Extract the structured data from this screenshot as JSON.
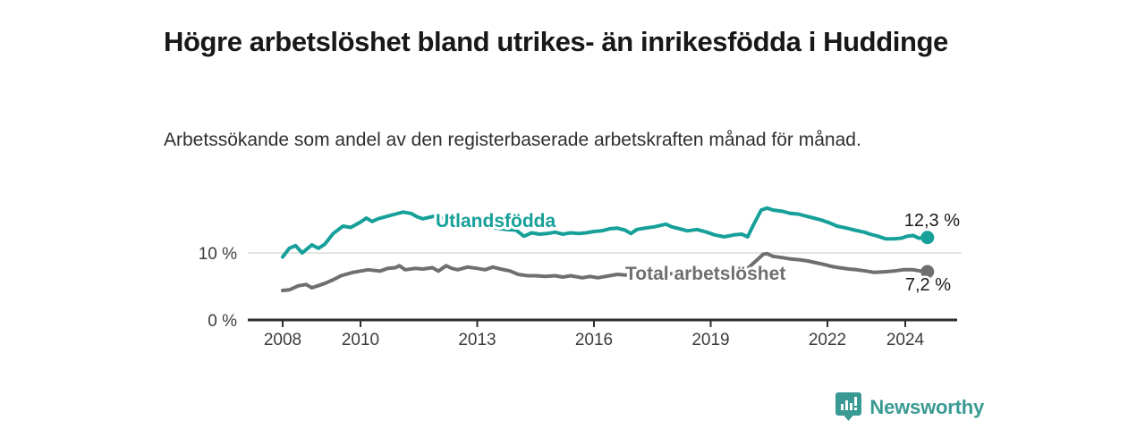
{
  "header": {
    "title": "Högre arbetslöshet bland utrikes- än inrikesfödda i Huddinge",
    "subtitle": "Arbetssökande som andel av den registerbaserade arbetskraften månad för månad."
  },
  "branding": {
    "logo_text": "Newsworthy",
    "logo_icon": "bar-chart-speech-bubble-icon",
    "logo_color": "#3a9a93"
  },
  "chart_data": {
    "type": "line",
    "title": "Högre arbetslöshet bland utrikes- än inrikesfödda i Huddinge",
    "subtitle": "Arbetssökande som andel av den registerbaserade arbetskraften månad för månad.",
    "xlabel": "",
    "ylabel": "",
    "grid": "horizontal-gridline-at-10-only",
    "legend": "inline-line-labels",
    "x_axis": {
      "ticks": [
        2008,
        2010,
        2013,
        2016,
        2019,
        2022,
        2024
      ],
      "range": [
        2008,
        2025.2
      ]
    },
    "y_axis": {
      "unit": "%",
      "ticks": [
        {
          "value": 0,
          "label": "0 %"
        },
        {
          "value": 10,
          "label": "10 %"
        }
      ],
      "range": [
        0,
        18
      ]
    },
    "series": [
      {
        "name": "Utlandsfödda",
        "color": "#16a099",
        "end_value": 12.3,
        "end_label": "12,3 %",
        "points": [
          [
            2008.0,
            9.4
          ],
          [
            2008.17,
            10.7
          ],
          [
            2008.33,
            11.1
          ],
          [
            2008.5,
            10.0
          ],
          [
            2008.75,
            11.2
          ],
          [
            2008.92,
            10.7
          ],
          [
            2009.08,
            11.3
          ],
          [
            2009.3,
            12.9
          ],
          [
            2009.55,
            14.0
          ],
          [
            2009.75,
            13.8
          ],
          [
            2010.0,
            14.6
          ],
          [
            2010.15,
            15.2
          ],
          [
            2010.3,
            14.7
          ],
          [
            2010.45,
            15.1
          ],
          [
            2010.7,
            15.5
          ],
          [
            2010.9,
            15.8
          ],
          [
            2011.1,
            16.1
          ],
          [
            2011.3,
            15.9
          ],
          [
            2011.45,
            15.4
          ],
          [
            2011.6,
            15.1
          ],
          [
            2011.75,
            15.3
          ],
          [
            2011.9,
            15.5
          ],
          [
            2012.1,
            15.2
          ],
          [
            2012.3,
            14.9
          ],
          [
            2012.5,
            14.7
          ],
          [
            2012.75,
            14.4
          ],
          [
            2013.0,
            14.2
          ],
          [
            2013.25,
            13.9
          ],
          [
            2013.5,
            13.7
          ],
          [
            2013.75,
            13.5
          ],
          [
            2014.0,
            13.4
          ],
          [
            2014.2,
            12.5
          ],
          [
            2014.4,
            13.0
          ],
          [
            2014.6,
            12.8
          ],
          [
            2014.8,
            12.9
          ],
          [
            2015.0,
            13.1
          ],
          [
            2015.2,
            12.8
          ],
          [
            2015.4,
            13.0
          ],
          [
            2015.6,
            12.9
          ],
          [
            2015.8,
            13.0
          ],
          [
            2016.0,
            13.2
          ],
          [
            2016.2,
            13.3
          ],
          [
            2016.4,
            13.6
          ],
          [
            2016.6,
            13.7
          ],
          [
            2016.8,
            13.4
          ],
          [
            2016.95,
            12.9
          ],
          [
            2017.1,
            13.5
          ],
          [
            2017.3,
            13.7
          ],
          [
            2017.55,
            13.9
          ],
          [
            2017.85,
            14.3
          ],
          [
            2018.0,
            13.9
          ],
          [
            2018.2,
            13.6
          ],
          [
            2018.4,
            13.3
          ],
          [
            2018.65,
            13.5
          ],
          [
            2018.9,
            13.1
          ],
          [
            2019.1,
            12.7
          ],
          [
            2019.35,
            12.4
          ],
          [
            2019.6,
            12.7
          ],
          [
            2019.8,
            12.8
          ],
          [
            2019.95,
            12.4
          ],
          [
            2020.1,
            14.2
          ],
          [
            2020.3,
            16.4
          ],
          [
            2020.45,
            16.7
          ],
          [
            2020.6,
            16.4
          ],
          [
            2020.85,
            16.2
          ],
          [
            2021.05,
            15.9
          ],
          [
            2021.25,
            15.8
          ],
          [
            2021.45,
            15.5
          ],
          [
            2021.65,
            15.2
          ],
          [
            2021.85,
            14.9
          ],
          [
            2022.05,
            14.5
          ],
          [
            2022.25,
            14.0
          ],
          [
            2022.5,
            13.7
          ],
          [
            2022.7,
            13.4
          ],
          [
            2022.95,
            13.1
          ],
          [
            2023.1,
            12.8
          ],
          [
            2023.3,
            12.5
          ],
          [
            2023.5,
            12.1
          ],
          [
            2023.7,
            12.1
          ],
          [
            2023.9,
            12.2
          ],
          [
            2024.05,
            12.5
          ],
          [
            2024.2,
            12.6
          ],
          [
            2024.35,
            12.2
          ],
          [
            2024.57,
            12.3
          ]
        ]
      },
      {
        "name": "Total arbetslöshet",
        "color": "#6f6f6f",
        "end_value": 7.2,
        "end_label": "7,2 %",
        "points": [
          [
            2008.0,
            4.4
          ],
          [
            2008.17,
            4.5
          ],
          [
            2008.4,
            5.1
          ],
          [
            2008.6,
            5.3
          ],
          [
            2008.75,
            4.8
          ],
          [
            2008.9,
            5.1
          ],
          [
            2009.1,
            5.5
          ],
          [
            2009.3,
            6.0
          ],
          [
            2009.5,
            6.6
          ],
          [
            2009.8,
            7.1
          ],
          [
            2010.0,
            7.3
          ],
          [
            2010.2,
            7.5
          ],
          [
            2010.5,
            7.3
          ],
          [
            2010.7,
            7.7
          ],
          [
            2010.9,
            7.8
          ],
          [
            2011.0,
            8.1
          ],
          [
            2011.15,
            7.5
          ],
          [
            2011.4,
            7.7
          ],
          [
            2011.6,
            7.6
          ],
          [
            2011.85,
            7.8
          ],
          [
            2012.0,
            7.3
          ],
          [
            2012.2,
            8.1
          ],
          [
            2012.35,
            7.7
          ],
          [
            2012.5,
            7.5
          ],
          [
            2012.75,
            7.9
          ],
          [
            2013.0,
            7.7
          ],
          [
            2013.2,
            7.5
          ],
          [
            2013.4,
            7.9
          ],
          [
            2013.6,
            7.6
          ],
          [
            2013.85,
            7.3
          ],
          [
            2014.05,
            6.8
          ],
          [
            2014.3,
            6.6
          ],
          [
            2014.5,
            6.6
          ],
          [
            2014.75,
            6.5
          ],
          [
            2015.0,
            6.6
          ],
          [
            2015.2,
            6.4
          ],
          [
            2015.4,
            6.6
          ],
          [
            2015.7,
            6.3
          ],
          [
            2015.9,
            6.5
          ],
          [
            2016.1,
            6.3
          ],
          [
            2016.4,
            6.6
          ],
          [
            2016.6,
            6.8
          ],
          [
            2016.8,
            6.7
          ],
          [
            2017.0,
            6.8
          ],
          [
            2017.25,
            6.9
          ],
          [
            2017.5,
            6.8
          ],
          [
            2017.75,
            6.9
          ],
          [
            2018.0,
            6.9
          ],
          [
            2018.25,
            7.0
          ],
          [
            2018.5,
            6.9
          ],
          [
            2018.75,
            7.0
          ],
          [
            2019.0,
            7.0
          ],
          [
            2019.25,
            7.1
          ],
          [
            2019.5,
            7.2
          ],
          [
            2019.75,
            7.4
          ],
          [
            2019.95,
            7.7
          ],
          [
            2020.2,
            9.0
          ],
          [
            2020.35,
            9.8
          ],
          [
            2020.45,
            9.9
          ],
          [
            2020.6,
            9.5
          ],
          [
            2020.85,
            9.3
          ],
          [
            2021.05,
            9.1
          ],
          [
            2021.25,
            9.0
          ],
          [
            2021.5,
            8.8
          ],
          [
            2021.65,
            8.6
          ],
          [
            2021.9,
            8.3
          ],
          [
            2022.1,
            8.0
          ],
          [
            2022.3,
            7.8
          ],
          [
            2022.55,
            7.6
          ],
          [
            2022.75,
            7.5
          ],
          [
            2023.0,
            7.3
          ],
          [
            2023.2,
            7.1
          ],
          [
            2023.5,
            7.2
          ],
          [
            2023.7,
            7.3
          ],
          [
            2023.95,
            7.5
          ],
          [
            2024.2,
            7.5
          ],
          [
            2024.4,
            7.3
          ],
          [
            2024.57,
            7.2
          ]
        ]
      }
    ]
  }
}
